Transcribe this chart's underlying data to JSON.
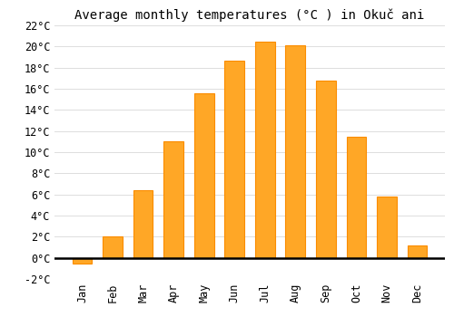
{
  "title": "Average monthly temperatures (°C ) in Okuč ani",
  "months": [
    "Jan",
    "Feb",
    "Mar",
    "Apr",
    "May",
    "Jun",
    "Jul",
    "Aug",
    "Sep",
    "Oct",
    "Nov",
    "Dec"
  ],
  "values": [
    -0.5,
    2.0,
    6.4,
    11.0,
    15.6,
    18.7,
    20.5,
    20.1,
    16.8,
    11.5,
    5.8,
    1.2
  ],
  "bar_color": "#FFA726",
  "bar_edge_color": "#FB8C00",
  "ylim": [
    -2,
    22
  ],
  "yticks": [
    -2,
    0,
    2,
    4,
    6,
    8,
    10,
    12,
    14,
    16,
    18,
    20,
    22
  ],
  "background_color": "#ffffff",
  "grid_color": "#dddddd",
  "title_fontsize": 10,
  "tick_fontsize": 8.5,
  "font_family": "monospace"
}
